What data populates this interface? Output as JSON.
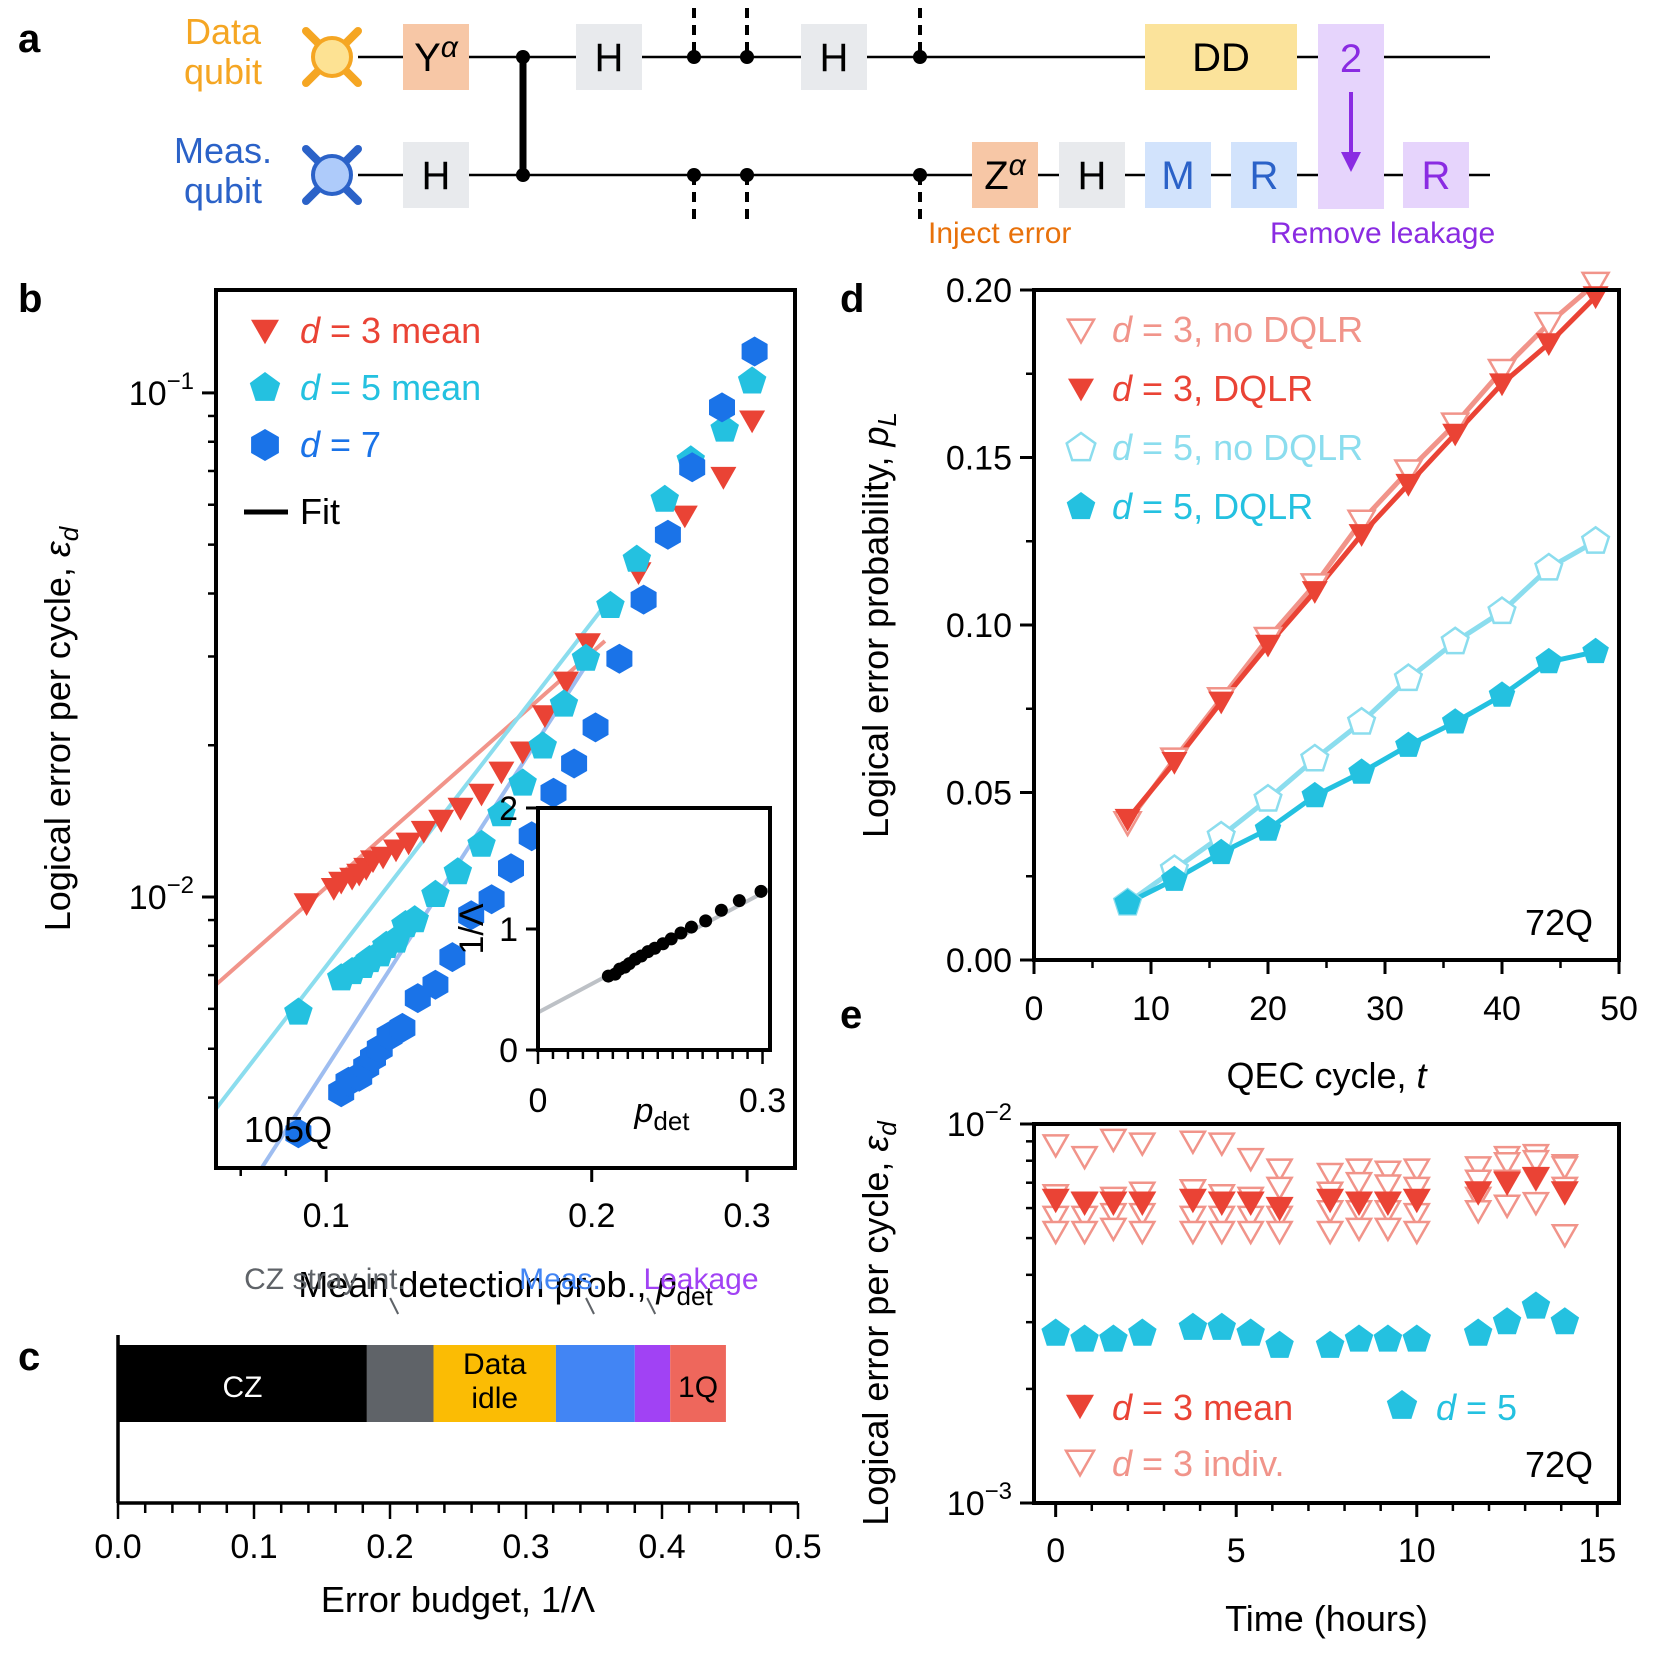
{
  "colors": {
    "data_qubit": "#F5A623",
    "meas_qubit": "#2B62C8",
    "y_gate": "#F7C7A6",
    "z_gate": "#F7C7A6",
    "h_gate": "#E8EAED",
    "dd": "#FBE39B",
    "m_gate": "#D2E3FC",
    "r_meas": "#D2E3FC",
    "leak": "#E6D4FC",
    "leak_text": "#8A2BE2",
    "inject_text": "#E8710A",
    "remove_text": "#8A2BE2",
    "d3": "#EA4335",
    "d3_light": "#F1948A",
    "d5": "#24C1E0",
    "d5_light": "#8BDDEE",
    "d7": "#1A73E8",
    "d7_light": "#9EBDF0",
    "cz": "#000000",
    "stray": "#5F6368",
    "idle": "#FBBC04",
    "meas": "#4285F4",
    "leakage": "#A142F4",
    "oneq": "#EE675C"
  },
  "panel_a": {
    "letter": "a",
    "data_label": [
      "Data",
      "qubit"
    ],
    "meas_label": [
      "Meas.",
      "qubit"
    ],
    "gates": {
      "y_alpha": "Y",
      "z_alpha": "Z",
      "alpha": "α",
      "h": "H",
      "dd": "DD",
      "m": "M",
      "r": "R",
      "leak_num": "2"
    },
    "inject_error": "Inject error",
    "remove_leakage": "Remove leakage"
  },
  "chart_data": [
    {
      "panel": "b",
      "type": "scatter",
      "xlabel": "Mean detection prob., p_det",
      "xlabel_main": "Mean detection prob., ",
      "xlabel_sym": "p",
      "xlabel_sub": "det",
      "ylabel_main": "Logical error per cycle, ",
      "ylabel_sym": "ε",
      "ylabel_sub": "d",
      "xscale": "log",
      "yscale": "log",
      "xlim": [
        0.075,
        0.34
      ],
      "ylim": [
        0.0029,
        0.16
      ],
      "xticks": [
        0.1,
        0.2,
        0.3
      ],
      "xtick_labels": [
        "0.1",
        "0.2",
        "0.3"
      ],
      "yticks_major": [
        "10^-1",
        "10^-2"
      ],
      "yticks_minor": [
        0.004,
        0.005,
        0.006,
        0.007,
        0.008,
        0.009,
        0.02,
        0.03,
        0.04,
        0.05,
        0.06,
        0.07,
        0.08,
        0.09
      ],
      "annotation": "105Q",
      "legend": [
        "d = 3 mean",
        "d = 5 mean",
        "d = 7",
        "Fit"
      ],
      "legend_var": "d",
      "legend_rest": [
        " = 3 mean",
        " = 5 mean",
        " = 7"
      ],
      "legend_fit": "Fit",
      "series": [
        {
          "name": "d = 3 mean",
          "marker": "triangle-down",
          "x": [
            0.095,
            0.102,
            0.104,
            0.107,
            0.109,
            0.111,
            0.113,
            0.116,
            0.12,
            0.124,
            0.129,
            0.135,
            0.142,
            0.15,
            0.158,
            0.167,
            0.177,
            0.187,
            0.198,
            0.226,
            0.255,
            0.282,
            0.304
          ],
          "y": [
            0.0097,
            0.0104,
            0.0107,
            0.0109,
            0.0111,
            0.0114,
            0.0118,
            0.012,
            0.0124,
            0.0128,
            0.0135,
            0.0142,
            0.015,
            0.016,
            0.0177,
            0.0194,
            0.0229,
            0.0267,
            0.0318,
            0.044,
            0.057,
            0.068,
            0.088
          ]
        },
        {
          "name": "d = 5 mean",
          "marker": "pentagon",
          "x": [
            0.093,
            0.104,
            0.107,
            0.11,
            0.112,
            0.115,
            0.117,
            0.12,
            0.123,
            0.126,
            0.133,
            0.141,
            0.15,
            0.158,
            0.167,
            0.176,
            0.186,
            0.197,
            0.21,
            0.225,
            0.242,
            0.259,
            0.283,
            0.304
          ],
          "y": [
            0.0059,
            0.0069,
            0.0071,
            0.0073,
            0.0075,
            0.0077,
            0.008,
            0.0082,
            0.0088,
            0.009,
            0.0101,
            0.0112,
            0.0127,
            0.0146,
            0.0168,
            0.0199,
            0.0241,
            0.0297,
            0.0378,
            0.0467,
            0.0614,
            0.0735,
            0.0846,
            0.1054
          ]
        },
        {
          "name": "d = 7",
          "marker": "hexagon",
          "x": [
            0.093,
            0.104,
            0.106,
            0.109,
            0.111,
            0.113,
            0.115,
            0.118,
            0.122,
            0.127,
            0.133,
            0.139,
            0.146,
            0.154,
            0.162,
            0.171,
            0.181,
            0.191,
            0.202,
            0.215,
            0.229,
            0.244,
            0.26,
            0.281,
            0.306
          ],
          "y": [
            0.0034,
            0.0041,
            0.0043,
            0.0044,
            0.0046,
            0.0048,
            0.005,
            0.0053,
            0.0055,
            0.0063,
            0.0067,
            0.0076,
            0.0092,
            0.0099,
            0.0114,
            0.0132,
            0.0161,
            0.0184,
            0.0217,
            0.0297,
            0.0389,
            0.0523,
            0.0712,
            0.0936,
            0.1208
          ]
        }
      ],
      "fits": [
        {
          "name": "d = 3 fit",
          "x": [
            0.075,
            0.207
          ],
          "y": [
            0.0067,
            0.0322
          ]
        },
        {
          "name": "d = 5 fit",
          "x": [
            0.075,
            0.211
          ],
          "y": [
            0.0038,
            0.0396
          ]
        },
        {
          "name": "d = 7 fit",
          "x": [
            0.075,
            0.196
          ],
          "y": [
            0.0021,
            0.0284
          ]
        }
      ],
      "inset": {
        "type": "scatter",
        "xlabel_sym": "p",
        "xlabel_sub": "det",
        "ylabel": "1/Λ",
        "xlim": [
          0,
          0.31
        ],
        "ylim": [
          0,
          2
        ],
        "xtick_labels": [
          "0",
          "0.3"
        ],
        "ytick_labels": [
          "0",
          "1",
          "2"
        ],
        "x": [
          0.094,
          0.103,
          0.109,
          0.116,
          0.122,
          0.13,
          0.138,
          0.147,
          0.156,
          0.167,
          0.178,
          0.191,
          0.205,
          0.224,
          0.245,
          0.269,
          0.298
        ],
        "y": [
          0.611,
          0.627,
          0.668,
          0.685,
          0.714,
          0.751,
          0.777,
          0.813,
          0.841,
          0.878,
          0.918,
          0.967,
          1.016,
          1.067,
          1.155,
          1.234,
          1.311
        ],
        "fit": {
          "x": [
            0,
            0.31
          ],
          "y": [
            0.31,
            1.33
          ]
        }
      }
    },
    {
      "panel": "c",
      "type": "bar",
      "orientation": "horizontal-stacked",
      "xlabel": "Error budget, 1/Λ",
      "xlim": [
        0,
        0.5
      ],
      "xticks": [
        0.0,
        0.1,
        0.2,
        0.3,
        0.4,
        0.5
      ],
      "xtick_labels": [
        "0.0",
        "0.1",
        "0.2",
        "0.3",
        "0.4",
        "0.5"
      ],
      "segments": [
        {
          "name": "CZ",
          "start": 0.0,
          "end": 0.183,
          "label": "CZ",
          "color": "#000000",
          "text_color": "#ffffff"
        },
        {
          "name": "CZ stray int.",
          "start": 0.183,
          "end": 0.232,
          "label": "",
          "color": "#5F6368"
        },
        {
          "name": "Data idle",
          "start": 0.232,
          "end": 0.322,
          "label": "Data\nidle",
          "color": "#FBBC04",
          "text_color": "#000000"
        },
        {
          "name": "Meas.",
          "start": 0.322,
          "end": 0.38,
          "label": "",
          "color": "#4285F4"
        },
        {
          "name": "Leakage",
          "start": 0.38,
          "end": 0.406,
          "label": "",
          "color": "#A142F4"
        },
        {
          "name": "1Q",
          "start": 0.406,
          "end": 0.447,
          "label": "1Q",
          "color": "#EE675C",
          "text_color": "#000000"
        }
      ],
      "callouts": [
        {
          "text": "CZ stray int.",
          "color": "#5F6368",
          "target": 0.206
        },
        {
          "text": "Meas.",
          "color": "#4285F4",
          "target": 0.35
        },
        {
          "text": "Leakage",
          "color": "#A142F4",
          "target": 0.395
        }
      ]
    },
    {
      "panel": "d",
      "type": "line",
      "xlabel_main": "QEC cycle, ",
      "xlabel_sym": "t",
      "ylabel_main": "Logical error probability, ",
      "ylabel_sym": "p",
      "ylabel_sub": "L",
      "xlim": [
        0,
        50
      ],
      "ylim": [
        0,
        0.2
      ],
      "xticks": [
        0,
        10,
        20,
        30,
        40,
        50
      ],
      "xtick_labels": [
        "0",
        "10",
        "20",
        "30",
        "40",
        "50"
      ],
      "yticks": [
        0,
        0.05,
        0.1,
        0.15,
        0.2
      ],
      "ytick_labels": [
        "0.00",
        "0.05",
        "0.10",
        "0.15",
        "0.20"
      ],
      "annotation": "72Q",
      "legend_var": "d",
      "x": [
        8,
        12,
        16,
        20,
        24,
        28,
        32,
        36,
        40,
        44,
        48
      ],
      "series": [
        {
          "name": "d = 3, no DQLR",
          "rest": " = 3, no DQLR",
          "marker": "triangle-down",
          "filled": false,
          "y": [
            0.041,
            0.06,
            0.078,
            0.096,
            0.112,
            0.131,
            0.146,
            0.16,
            0.176,
            0.19,
            0.202
          ]
        },
        {
          "name": "d = 3, DQLR",
          "rest": " = 3, DQLR",
          "marker": "triangle-down",
          "filled": true,
          "y": [
            0.042,
            0.059,
            0.077,
            0.094,
            0.11,
            0.127,
            0.142,
            0.157,
            0.172,
            0.184,
            0.198
          ]
        },
        {
          "name": "d = 5, no DQLR",
          "rest": " = 5, no DQLR",
          "marker": "pentagon",
          "filled": false,
          "y": [
            0.017,
            0.027,
            0.037,
            0.048,
            0.06,
            0.071,
            0.084,
            0.095,
            0.104,
            0.117,
            0.125
          ]
        },
        {
          "name": "d = 5, DQLR",
          "rest": " = 5, DQLR",
          "marker": "pentagon",
          "filled": true,
          "y": [
            0.017,
            0.024,
            0.032,
            0.039,
            0.049,
            0.056,
            0.064,
            0.071,
            0.079,
            0.089,
            0.092
          ]
        }
      ]
    },
    {
      "panel": "e",
      "type": "scatter",
      "xlabel": "Time (hours)",
      "ylabel_main": "Logical error per cycle, ",
      "ylabel_sym": "ε",
      "ylabel_sub": "d",
      "xlim": [
        -0.6,
        15.6
      ],
      "ylim": [
        0.001,
        0.01
      ],
      "yscale": "log",
      "xticks": [
        0,
        5,
        10,
        15
      ],
      "xtick_labels": [
        "0",
        "5",
        "10",
        "15"
      ],
      "yticks_major": [
        "10^-2",
        "10^-3"
      ],
      "yticks_minor": [
        0.002,
        0.003,
        0.004,
        0.005,
        0.006,
        0.007,
        0.008,
        0.009
      ],
      "annotation": "72Q",
      "legend_var": "d",
      "legend": [
        {
          "name": "d = 3 mean",
          "rest": " = 3 mean",
          "marker": "triangle-down",
          "filled": true
        },
        {
          "name": "d = 5",
          "rest": " = 5",
          "marker": "pentagon",
          "filled": true
        },
        {
          "name": "d = 3 indiv.",
          "rest": " = 3 indiv.",
          "marker": "triangle-down",
          "filled": false
        }
      ],
      "times": [
        0,
        0.8,
        1.6,
        2.4,
        3.8,
        4.6,
        5.4,
        6.2,
        7.6,
        8.4,
        9.2,
        10.0,
        11.7,
        12.5,
        13.3,
        14.1
      ],
      "d3_mean": [
        0.0063,
        0.0062,
        0.0062,
        0.0062,
        0.0063,
        0.0062,
        0.0062,
        0.006,
        0.0063,
        0.0062,
        0.0062,
        0.0063,
        0.0066,
        0.007,
        0.0072,
        0.0066
      ],
      "d3_indiv": [
        [
          0.0088,
          0.0065,
          0.0057,
          0.0052
        ],
        [
          0.0082,
          0.0062,
          0.0057,
          0.0052
        ],
        [
          0.0091,
          0.0064,
          0.0058,
          0.0053
        ],
        [
          0.0089,
          0.0066,
          0.0058,
          0.0052
        ],
        [
          0.009,
          0.0067,
          0.0057,
          0.0052
        ],
        [
          0.0089,
          0.0065,
          0.0057,
          0.0052
        ],
        [
          0.0081,
          0.0064,
          0.0057,
          0.0052
        ],
        [
          0.0076,
          0.0068,
          0.0057,
          0.0052
        ],
        [
          0.0074,
          0.0066,
          0.0059,
          0.0052
        ],
        [
          0.0076,
          0.007,
          0.0059,
          0.0053
        ],
        [
          0.0075,
          0.0069,
          0.0059,
          0.0053
        ],
        [
          0.0076,
          0.0068,
          0.0058,
          0.0052
        ],
        [
          0.0077,
          0.0071,
          0.0064,
          0.0059
        ],
        [
          0.0082,
          0.0079,
          0.0071,
          0.0061
        ],
        [
          0.0083,
          0.008,
          0.0072,
          0.0062
        ],
        [
          0.0078,
          0.0077,
          0.0068,
          0.0051
        ]
      ],
      "d5": [
        0.0028,
        0.0027,
        0.0027,
        0.0028,
        0.0029,
        0.0029,
        0.0028,
        0.0026,
        0.0026,
        0.0027,
        0.0027,
        0.0027,
        0.0028,
        0.003,
        0.0033,
        0.003
      ]
    }
  ]
}
